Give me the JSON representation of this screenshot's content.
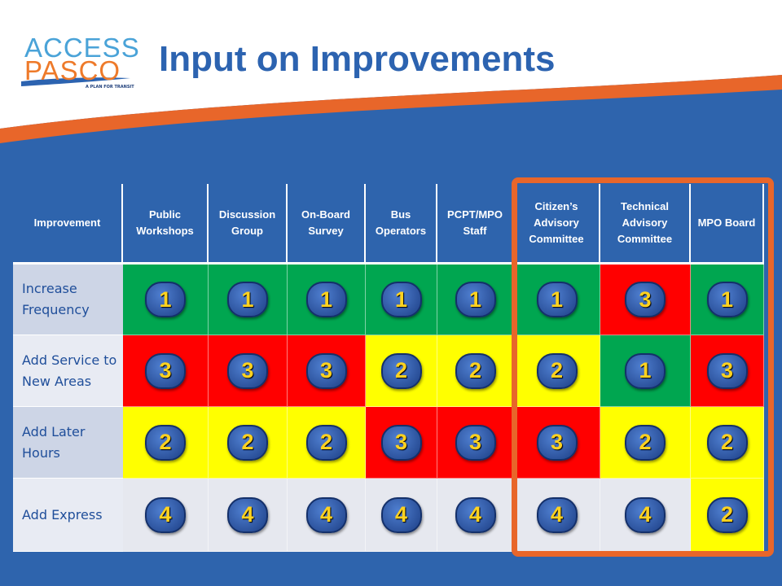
{
  "logo": {
    "line1": "ACCESS",
    "line2": "PASCO",
    "tagline": "A PLAN FOR TRANSIT"
  },
  "title": "Input on Improvements",
  "table": {
    "headers": [
      "Improvement",
      "Public Workshops",
      "Discussion Group",
      "On-Board Survey",
      "Bus Operators",
      "PCPT/MPO Staff",
      "Citizen’s Advisory Committee",
      "Technical Advisory Committee",
      "MPO Board"
    ],
    "rows": [
      {
        "label": "Increase Frequency",
        "ranks": [
          1,
          1,
          1,
          1,
          1,
          1,
          3,
          1
        ]
      },
      {
        "label": "Add Service to New Areas",
        "ranks": [
          3,
          3,
          3,
          2,
          2,
          2,
          1,
          3
        ]
      },
      {
        "label": "Add Later Hours",
        "ranks": [
          2,
          2,
          2,
          3,
          3,
          3,
          2,
          2
        ]
      },
      {
        "label": "Add Express",
        "ranks": [
          4,
          4,
          4,
          4,
          4,
          4,
          4,
          2
        ]
      }
    ],
    "rank_colors": {
      "1": "#00a650",
      "2": "#ffff00",
      "3": "#ff0000",
      "4": "#e6e8ef"
    }
  }
}
